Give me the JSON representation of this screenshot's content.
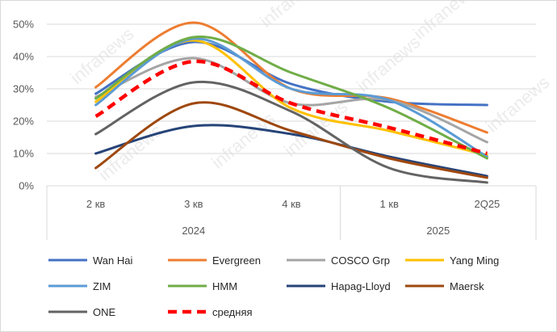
{
  "chart_data": {
    "type": "line",
    "title": "",
    "xlabel": "",
    "ylabel": "",
    "ylim": [
      0,
      50
    ],
    "y_ticks": [
      "0%",
      "10%",
      "20%",
      "30%",
      "40%",
      "50%"
    ],
    "y_unit": "%",
    "grid": "horizontal",
    "legend_position": "bottom",
    "smooth": true,
    "categories": [
      "2 кв",
      "3 кв",
      "4 кв",
      "1 кв",
      "2Q25"
    ],
    "category_groups": [
      {
        "label": "2024",
        "span": 3
      },
      {
        "label": "2025",
        "span": 2
      }
    ],
    "series": [
      {
        "name": "Wan Hai",
        "color": "#4472c4",
        "dash": false,
        "values": [
          28.5,
          44.5,
          31.5,
          26.0,
          25.0
        ]
      },
      {
        "name": "Evergreen",
        "color": "#ed7d31",
        "dash": false,
        "values": [
          30.5,
          50.5,
          30.0,
          27.0,
          16.5
        ]
      },
      {
        "name": "COSCO Grp",
        "color": "#a5a5a5",
        "dash": false,
        "values": [
          27.5,
          39.5,
          25.5,
          26.5,
          13.5
        ]
      },
      {
        "name": "Yang Ming",
        "color": "#ffc000",
        "dash": false,
        "values": [
          26.0,
          45.0,
          24.0,
          17.0,
          9.5
        ]
      },
      {
        "name": "ZIM",
        "color": "#5b9bd5",
        "dash": false,
        "values": [
          25.0,
          45.5,
          30.0,
          26.5,
          9.0
        ]
      },
      {
        "name": "HMM",
        "color": "#70ad47",
        "dash": false,
        "values": [
          27.0,
          46.0,
          35.0,
          24.0,
          8.5
        ]
      },
      {
        "name": "Hapag-Lloyd",
        "color": "#264478",
        "dash": false,
        "values": [
          10.0,
          18.5,
          16.0,
          9.0,
          3.0
        ]
      },
      {
        "name": "Maersk",
        "color": "#9e480e",
        "dash": false,
        "values": [
          5.5,
          25.5,
          17.0,
          8.5,
          2.5
        ]
      },
      {
        "name": "ONE",
        "color": "#636363",
        "dash": false,
        "values": [
          16.0,
          32.0,
          23.0,
          5.5,
          1.0
        ]
      },
      {
        "name": "средняя",
        "color": "#ff0000",
        "dash": true,
        "values": [
          21.5,
          38.5,
          25.5,
          18.0,
          10.0
        ]
      }
    ]
  },
  "watermark": "infranews"
}
